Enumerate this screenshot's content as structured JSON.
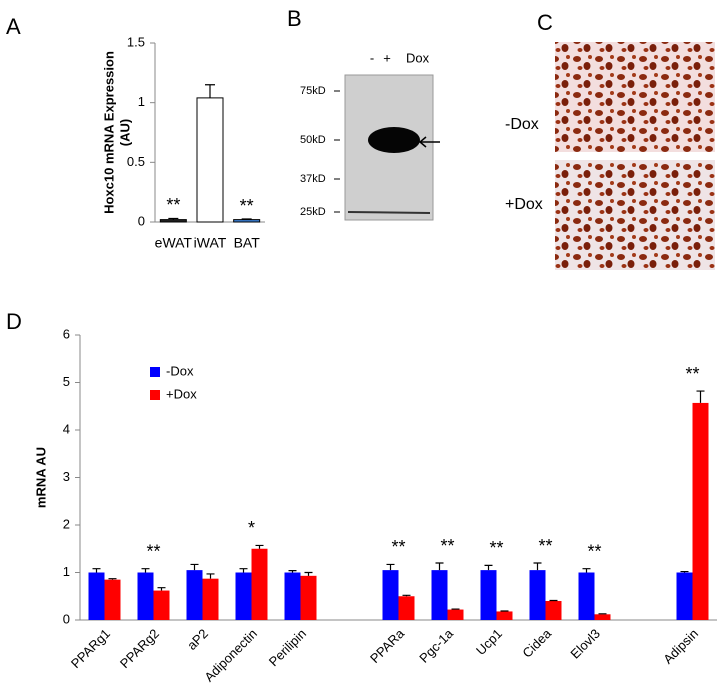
{
  "panel_labels": [
    "A",
    "B",
    "C",
    "D"
  ],
  "blot": {
    "lanes": [
      "-",
      "+",
      "Dox"
    ],
    "markers": [
      "75kD",
      "50kD",
      "37kD",
      "25kD"
    ]
  },
  "micrograph": {
    "rows": [
      "-Dox",
      "+Dox"
    ]
  },
  "chart_data": [
    {
      "type": "bar",
      "ylabel": [
        "Hoxc10 mRNA Expression",
        "(AU)"
      ],
      "categories": [
        "eWAT",
        "iWAT",
        "BAT"
      ],
      "values": [
        0.02,
        1.04,
        0.02
      ],
      "errors": [
        0.01,
        0.11,
        0.005
      ],
      "colors": [
        "#222222",
        "#ffffff",
        "#3a7fd5"
      ],
      "significance": [
        "**",
        null,
        "**"
      ],
      "ylim": [
        0,
        1.5
      ],
      "yticks": [
        0,
        0.5,
        1,
        1.5
      ]
    },
    {
      "type": "grouped-bar",
      "ylabel": [
        "mRNA AU"
      ],
      "categories": [
        "PPARg1",
        "PPARg2",
        "aP2",
        "Adiponectin",
        "Perilipin",
        null,
        "PPARa",
        "Pgc-1a",
        "Ucp1",
        "Cidea",
        "Elovl3",
        null,
        "Adipsin"
      ],
      "series": [
        {
          "name": "-Dox",
          "color": "#0000ff",
          "values": [
            1.0,
            1.0,
            1.05,
            1.0,
            1.0,
            null,
            1.05,
            1.05,
            1.05,
            1.05,
            1.0,
            null,
            1.0
          ],
          "errors": [
            0.08,
            0.08,
            0.12,
            0.08,
            0.04,
            null,
            0.12,
            0.15,
            0.1,
            0.15,
            0.08,
            null,
            0.02
          ]
        },
        {
          "name": "+Dox",
          "color": "#ff0000",
          "values": [
            0.85,
            0.62,
            0.87,
            1.5,
            0.93,
            null,
            0.5,
            0.22,
            0.18,
            0.4,
            0.12,
            null,
            4.57
          ],
          "errors": [
            0.02,
            0.06,
            0.1,
            0.07,
            0.07,
            null,
            0.02,
            0.01,
            0.01,
            0.01,
            0.01,
            null,
            0.25
          ]
        }
      ],
      "significance": [
        null,
        "**",
        null,
        "*",
        null,
        null,
        "**",
        "**",
        "**",
        "**",
        "**",
        null,
        "**"
      ],
      "ylim": [
        0,
        6
      ],
      "yticks": [
        0,
        1,
        2,
        3,
        4,
        5,
        6
      ],
      "legend": "upper-left"
    }
  ]
}
